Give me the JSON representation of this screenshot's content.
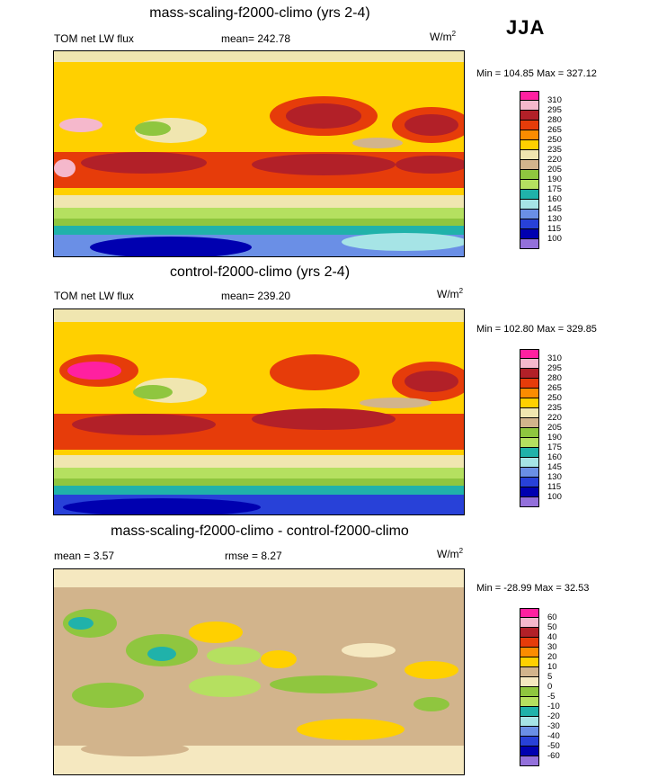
{
  "season": "JJA",
  "units": {
    "base": "W/m",
    "exp": "2"
  },
  "panels": [
    {
      "title": "mass-scaling-f2000-climo (yrs 2-4)",
      "left_label": "TOM net LW flux",
      "center_label": "mean= 242.78",
      "min_max": "Min = 104.85  Max = 327.12",
      "levels": [
        "310",
        "295",
        "280",
        "265",
        "250",
        "235",
        "220",
        "205",
        "190",
        "175",
        "160",
        "145",
        "130",
        "115",
        "100"
      ]
    },
    {
      "title": "control-f2000-climo (yrs 2-4)",
      "left_label": "TOM net LW flux",
      "center_label": "mean= 239.20",
      "min_max": "Min = 102.80  Max = 329.85",
      "levels": [
        "310",
        "295",
        "280",
        "265",
        "250",
        "235",
        "220",
        "205",
        "190",
        "175",
        "160",
        "145",
        "130",
        "115",
        "100"
      ]
    },
    {
      "title": "mass-scaling-f2000-climo - control-f2000-climo",
      "left_label": "mean =   3.57",
      "center_label": "rmse =   8.27",
      "min_max": "Min = -28.99  Max =  32.53",
      "levels": [
        "60",
        "50",
        "40",
        "30",
        "20",
        "10",
        "5",
        "0",
        "-5",
        "-10",
        "-20",
        "-30",
        "-40",
        "-50",
        "-60"
      ]
    }
  ],
  "colors": {
    "abs": [
      "#ff20a0",
      "#f5b8cc",
      "#b22028",
      "#e63c0a",
      "#fb8c00",
      "#ffd000",
      "#f0e6b0",
      "#d2b48c",
      "#8fc63f",
      "#b5e060",
      "#20b2aa",
      "#a6e4e6",
      "#6a8fe6",
      "#2841d8",
      "#0000b0",
      "#9370db"
    ],
    "diff": [
      "#ff20a0",
      "#f5b8cc",
      "#b22028",
      "#e63c0a",
      "#fb8c00",
      "#ffd000",
      "#d2b48c",
      "#f5e8c0",
      "#8fc63f",
      "#b5e060",
      "#20b2aa",
      "#a6e4e6",
      "#6a8fe6",
      "#2841d8",
      "#0000b0",
      "#9370db"
    ]
  }
}
